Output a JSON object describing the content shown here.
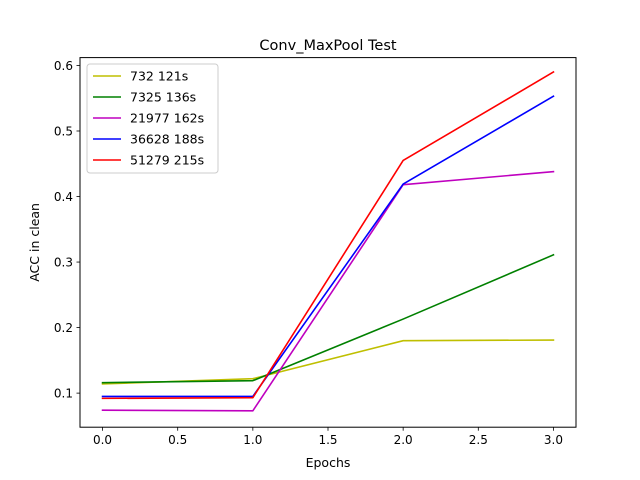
{
  "chart_data": {
    "type": "line",
    "title": "Conv_MaxPool Test",
    "xlabel": "Epochs",
    "ylabel": "ACC in clean",
    "x": [
      0,
      1,
      2,
      3
    ],
    "xlim": [
      -0.15,
      3.15
    ],
    "ylim": [
      0.048,
      0.612
    ],
    "xticks": [
      0.0,
      0.5,
      1.0,
      1.5,
      2.0,
      2.5,
      3.0
    ],
    "xtick_labels": [
      "0.0",
      "0.5",
      "1.0",
      "1.5",
      "2.0",
      "2.5",
      "3.0"
    ],
    "yticks": [
      0.1,
      0.2,
      0.3,
      0.4,
      0.5,
      0.6
    ],
    "ytick_labels": [
      "0.1",
      "0.2",
      "0.3",
      "0.4",
      "0.5",
      "0.6"
    ],
    "grid": false,
    "legend_position": "top-left",
    "series": [
      {
        "name": "732 121s",
        "color": "#bfbf00",
        "values": [
          0.114,
          0.122,
          0.18,
          0.181
        ]
      },
      {
        "name": "7325 136s",
        "color": "#008000",
        "values": [
          0.116,
          0.119,
          0.213,
          0.311
        ]
      },
      {
        "name": "21977 162s",
        "color": "#bf00bf",
        "values": [
          0.074,
          0.073,
          0.418,
          0.438
        ]
      },
      {
        "name": "36628 188s",
        "color": "#0000ff",
        "values": [
          0.095,
          0.095,
          0.419,
          0.553
        ]
      },
      {
        "name": "51279 215s",
        "color": "#ff0000",
        "values": [
          0.092,
          0.093,
          0.455,
          0.59
        ]
      }
    ]
  }
}
